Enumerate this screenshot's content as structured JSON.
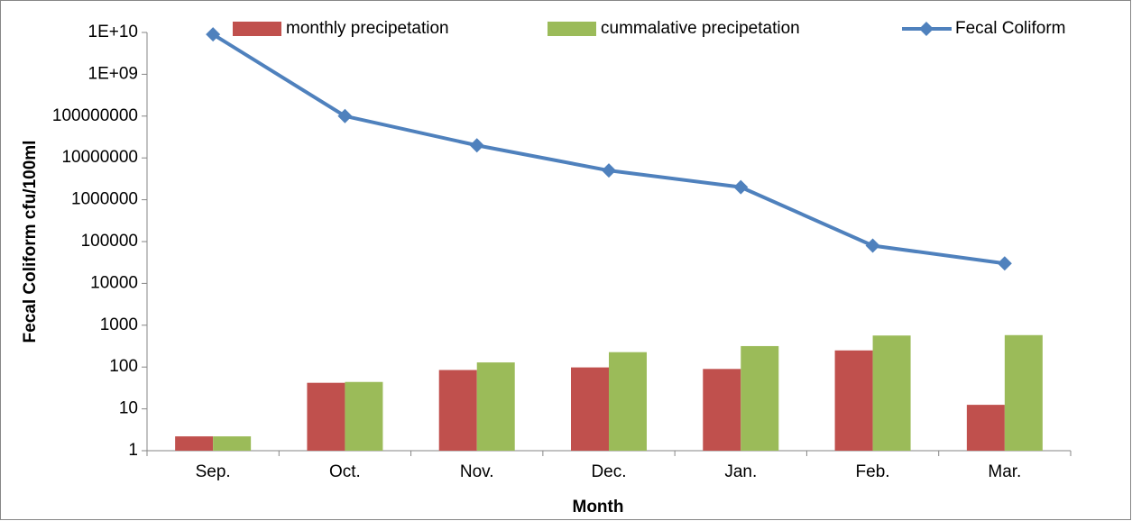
{
  "chart_data": {
    "type": "bar",
    "x_label": "Month",
    "y_label": "Fecal Coliform cfu/100ml",
    "categories": [
      "Sep.",
      "Oct.",
      "Nov.",
      "Dec.",
      "Jan.",
      "Feb.",
      "Mar."
    ],
    "series": [
      {
        "name": "monthly precipetation",
        "type": "bar",
        "color": "#c0504d",
        "values": [
          2.2,
          42,
          85,
          98,
          90,
          250,
          12.5
        ]
      },
      {
        "name": "cummalative precipetation",
        "type": "bar",
        "color": "#9bbb59",
        "values": [
          2.2,
          44,
          129,
          227,
          317,
          567,
          580
        ]
      },
      {
        "name": "Fecal Coliform",
        "type": "line",
        "color": "#4f81bd",
        "values": [
          9000000000,
          100000000,
          20000000,
          5000000,
          2000000,
          80000,
          30000
        ]
      }
    ],
    "ylim": [
      1,
      10000000000
    ],
    "yticks": [
      1,
      10,
      100,
      1000,
      10000,
      100000,
      1000000,
      10000000,
      100000000,
      {
        "value": 1000000000,
        "label": "1E+09"
      },
      {
        "value": 10000000000,
        "label": "1E+10"
      }
    ],
    "log_y": true,
    "grid": false,
    "legend": "top"
  }
}
